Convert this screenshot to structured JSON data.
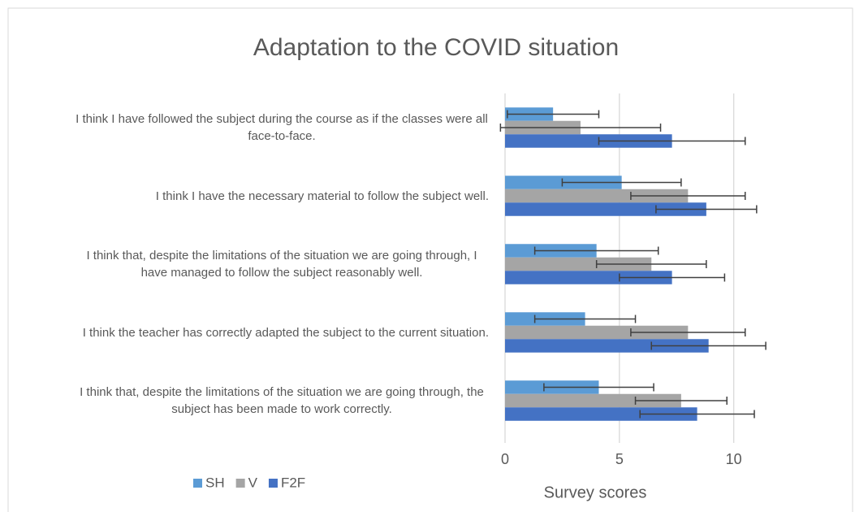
{
  "chart_data": {
    "type": "bar",
    "orientation": "horizontal",
    "title": "Adaptation to the COVID situation",
    "x_label": "Survey scores",
    "categories": [
      "I think I have followed the subject during the course as if the classes were all face-to-face.",
      "I think I have the necessary material to follow the subject well.",
      "I think that, despite the limitations of the situation we are going through, I have managed to follow the subject reasonably well.",
      "I think the teacher has correctly adapted the subject to the current situation.",
      "I think that, despite the limitations of the situation we are going through, the subject has been made to work correctly."
    ],
    "series": [
      {
        "name": "SH",
        "color": "#5b9bd5",
        "values": [
          2.1,
          5.1,
          4.0,
          3.5,
          4.1
        ],
        "errors": [
          2.0,
          2.6,
          2.7,
          2.2,
          2.4
        ]
      },
      {
        "name": "V",
        "color": "#a5a5a5",
        "values": [
          3.3,
          8.0,
          6.4,
          8.0,
          7.7
        ],
        "errors": [
          3.5,
          2.5,
          2.4,
          2.5,
          2.0
        ]
      },
      {
        "name": "F2F",
        "color": "#4472c4",
        "values": [
          7.3,
          8.8,
          7.3,
          8.9,
          8.4
        ],
        "errors": [
          3.2,
          2.2,
          2.3,
          2.5,
          2.5
        ]
      }
    ],
    "xlim": [
      0,
      12
    ],
    "xticks": [
      0,
      5,
      10
    ],
    "grid": true,
    "legend": "bottom-left"
  }
}
